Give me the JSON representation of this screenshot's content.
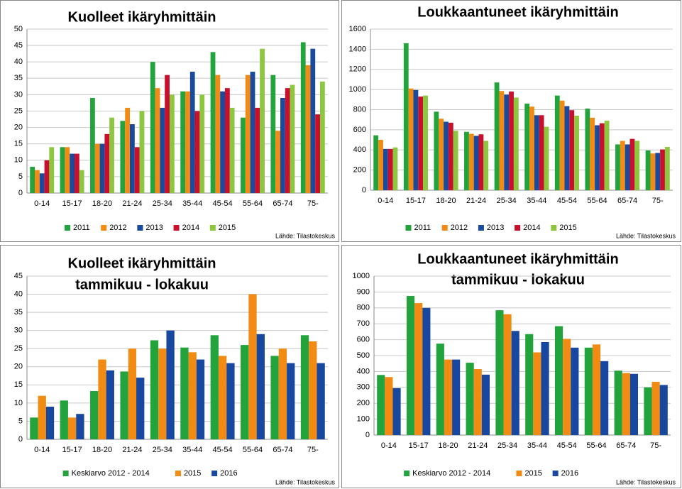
{
  "chart_data": [
    {
      "type": "bar",
      "title": "Kuolleet ikäryhmittäin",
      "categories": [
        "0-14",
        "15-17",
        "18-20",
        "21-24",
        "25-34",
        "35-44",
        "45-54",
        "55-64",
        "65-74",
        "75-"
      ],
      "series": [
        {
          "name": "2011",
          "color": "#23a33b",
          "values": [
            8,
            14,
            29,
            22,
            40,
            31,
            43,
            23,
            36,
            46
          ]
        },
        {
          "name": "2012",
          "color": "#f28b14",
          "values": [
            7,
            14,
            15,
            26,
            32,
            31,
            36,
            36,
            19,
            39
          ]
        },
        {
          "name": "2013",
          "color": "#1a4a9c",
          "values": [
            6,
            12,
            15,
            21,
            26,
            37,
            31,
            37,
            29,
            44
          ]
        },
        {
          "name": "2014",
          "color": "#c8102e",
          "values": [
            10,
            12,
            18,
            14,
            36,
            25,
            32,
            26,
            32,
            24
          ]
        },
        {
          "name": "2015",
          "color": "#8dc63f",
          "values": [
            14,
            7,
            23,
            25,
            30,
            30,
            26,
            44,
            33,
            34
          ]
        }
      ],
      "ylim": [
        0,
        50
      ],
      "yticks": [
        0,
        5,
        10,
        15,
        20,
        25,
        30,
        35,
        40,
        45,
        50
      ],
      "grid": true,
      "legend": "bottom",
      "source": "Lähde: Tilastokeskus"
    },
    {
      "type": "bar",
      "title": "Loukkaantuneet ikäryhmittäin",
      "categories": [
        "0-14",
        "15-17",
        "18-20",
        "21-24",
        "25-34",
        "35-44",
        "45-54",
        "55-64",
        "65-74",
        "75-"
      ],
      "series": [
        {
          "name": "2011",
          "color": "#23a33b",
          "values": [
            545,
            1460,
            780,
            580,
            1070,
            860,
            940,
            810,
            455,
            395
          ]
        },
        {
          "name": "2012",
          "color": "#f28b14",
          "values": [
            500,
            1010,
            710,
            560,
            985,
            830,
            890,
            720,
            490,
            365
          ]
        },
        {
          "name": "2013",
          "color": "#1a4a9c",
          "values": [
            410,
            995,
            680,
            540,
            950,
            745,
            835,
            645,
            455,
            370
          ]
        },
        {
          "name": "2014",
          "color": "#c8102e",
          "values": [
            410,
            930,
            670,
            555,
            980,
            745,
            795,
            665,
            510,
            405
          ]
        },
        {
          "name": "2015",
          "color": "#8dc63f",
          "values": [
            425,
            940,
            590,
            490,
            920,
            630,
            740,
            690,
            490,
            430
          ]
        }
      ],
      "ylim": [
        0,
        1600
      ],
      "yticks": [
        0,
        200,
        400,
        600,
        800,
        1000,
        1200,
        1400,
        1600
      ],
      "grid": true,
      "legend": "bottom",
      "source": "Lähde: Tilastokeskus"
    },
    {
      "type": "bar",
      "title": "Kuolleet ikäryhmittäin",
      "subtitle": "tammikuu - lokakuu",
      "categories": [
        "0-14",
        "15-17",
        "18-20",
        "21-24",
        "25-34",
        "35-44",
        "45-54",
        "55-64",
        "65-74",
        "75-"
      ],
      "series": [
        {
          "name": "Keskiarvo 2012 - 2014",
          "color": "#23a33b",
          "values": [
            6,
            10.7,
            13.3,
            18.7,
            27.3,
            25.3,
            28.7,
            26,
            23,
            28.7
          ]
        },
        {
          "name": "2015",
          "color": "#f28b14",
          "values": [
            12,
            6,
            22,
            25,
            25,
            24,
            23,
            40,
            25,
            27
          ]
        },
        {
          "name": "2016",
          "color": "#17479e",
          "values": [
            9,
            7,
            19,
            17,
            30,
            22,
            21,
            29,
            21,
            21
          ]
        }
      ],
      "ylim": [
        0,
        45
      ],
      "yticks": [
        0,
        5,
        10,
        15,
        20,
        25,
        30,
        35,
        40,
        45
      ],
      "grid": true,
      "legend": "bottom",
      "source": "Lähde: Tilastokeskus"
    },
    {
      "type": "bar",
      "title": "Loukkaantuneet ikäryhmittäin",
      "subtitle": "tammikuu - lokakuu",
      "categories": [
        "0-14",
        "15-17",
        "18-20",
        "21-24",
        "25-34",
        "35-44",
        "45-54",
        "55-64",
        "65-74",
        "75-"
      ],
      "series": [
        {
          "name": "Keskiarvo 2012 - 2014",
          "color": "#23a33b",
          "values": [
            378,
            875,
            575,
            455,
            785,
            635,
            685,
            550,
            405,
            300
          ]
        },
        {
          "name": "2015",
          "color": "#f28b14",
          "values": [
            365,
            830,
            475,
            415,
            760,
            520,
            605,
            570,
            390,
            335
          ]
        },
        {
          "name": "2016",
          "color": "#17479e",
          "values": [
            295,
            800,
            475,
            380,
            655,
            585,
            550,
            465,
            385,
            315
          ]
        }
      ],
      "ylim": [
        0,
        1000
      ],
      "yticks": [
        0,
        100,
        200,
        300,
        400,
        500,
        600,
        700,
        800,
        900,
        1000
      ],
      "grid": true,
      "legend": "bottom",
      "source": "Lähde: Tilastokeskus"
    }
  ]
}
